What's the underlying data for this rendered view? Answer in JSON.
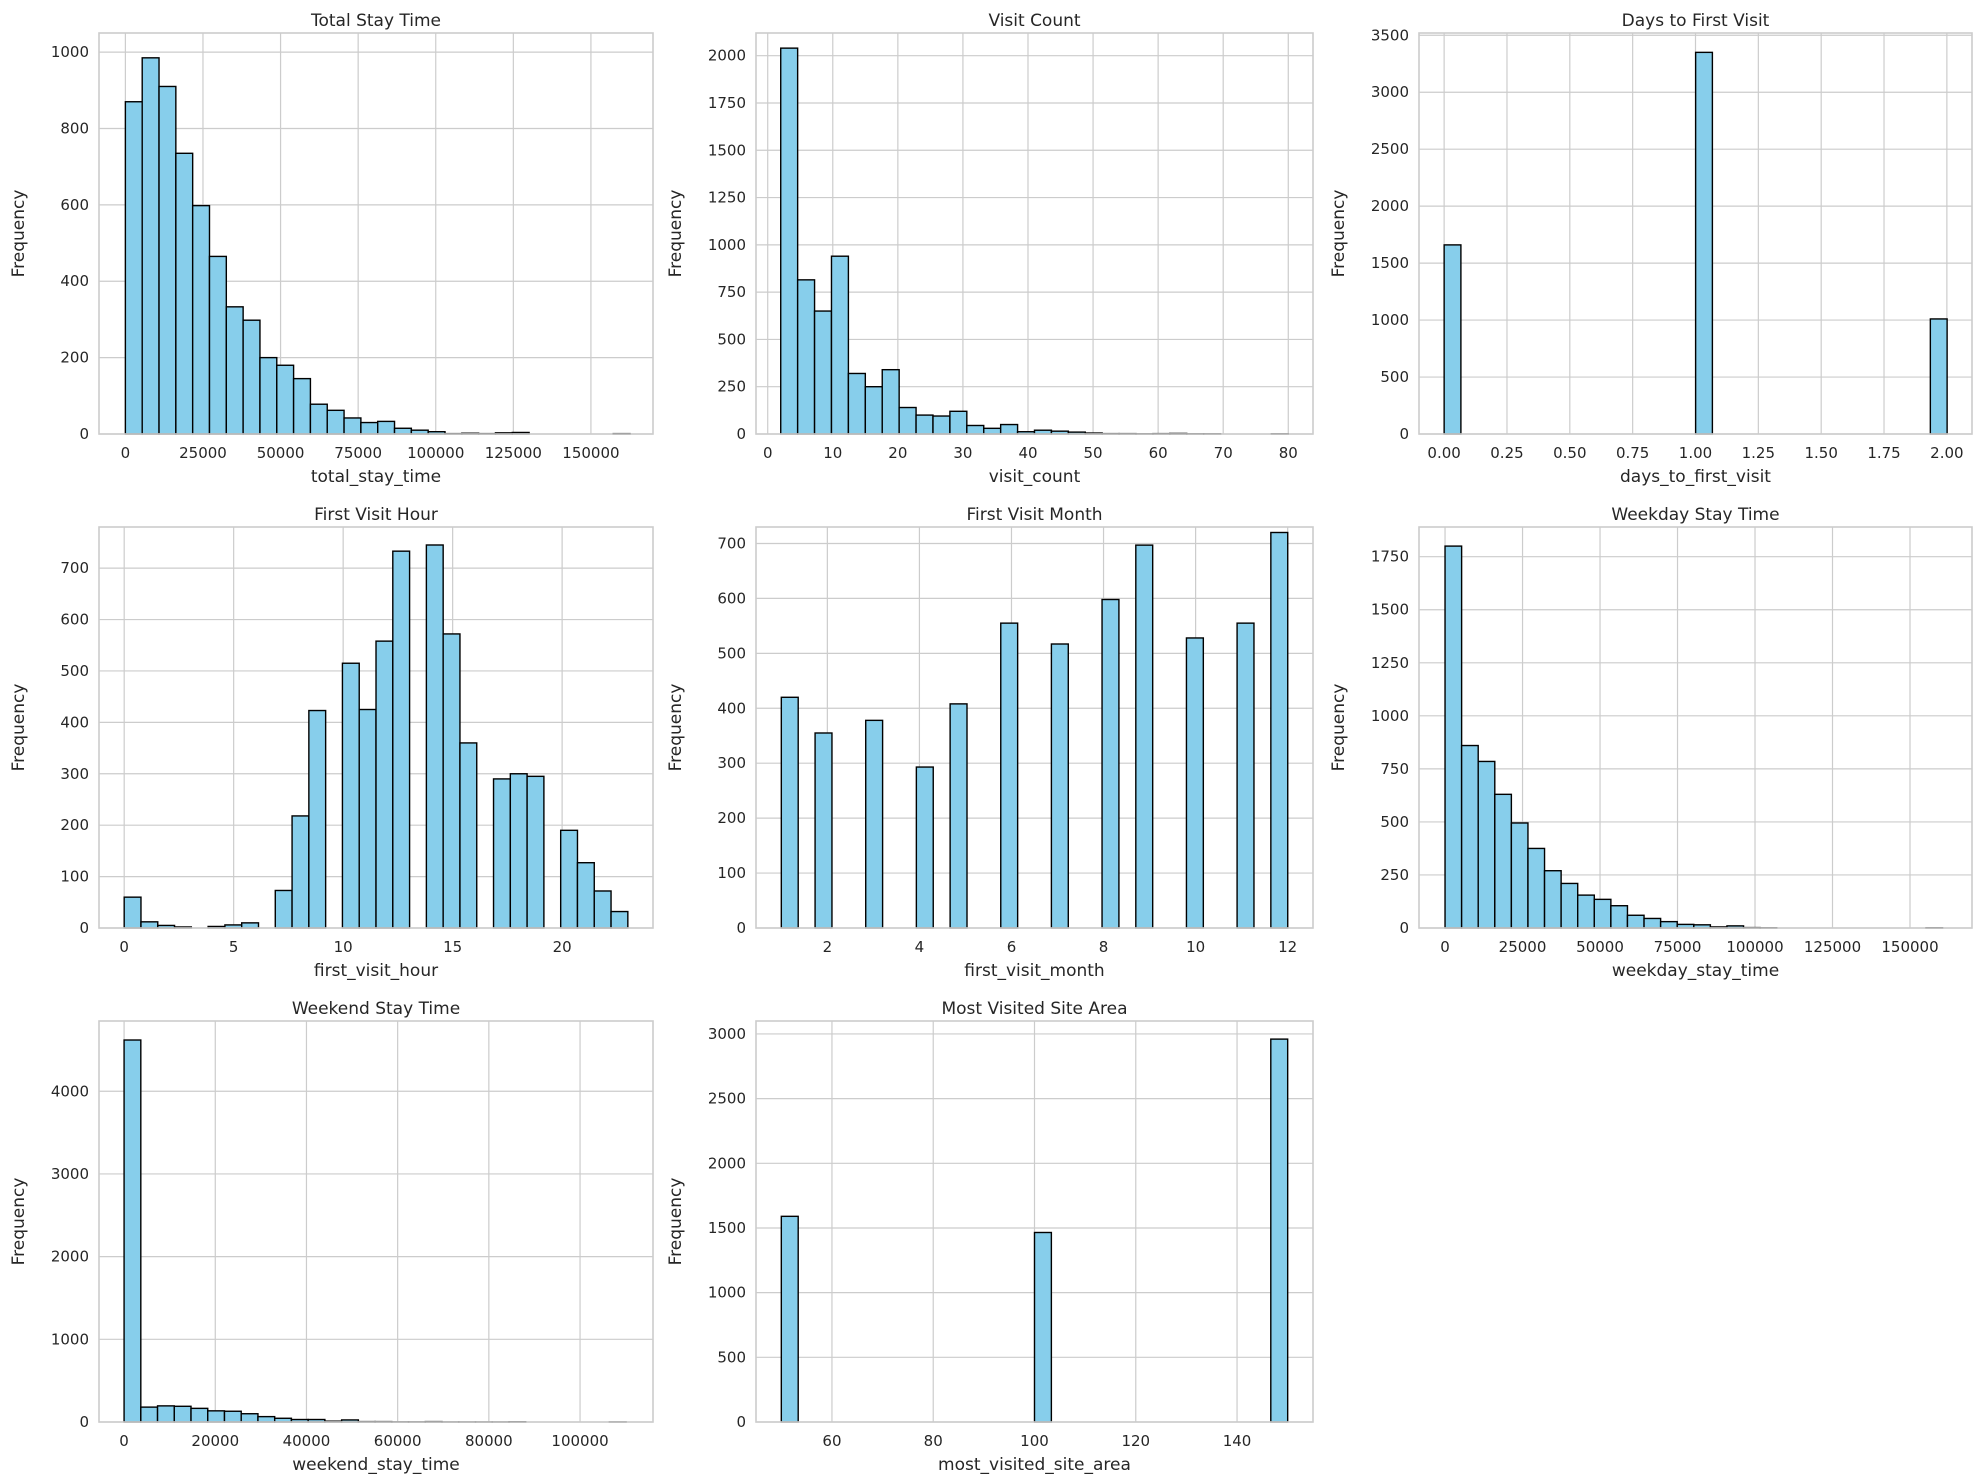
{
  "chart_data": [
    {
      "type": "bar",
      "title": "Total Stay Time",
      "xlabel": "total_stay_time",
      "ylabel": "Frequency",
      "xlim": [
        -8500,
        170000
      ],
      "ylim": [
        0,
        1050
      ],
      "xticks": [
        0,
        25000,
        50000,
        75000,
        100000,
        125000,
        150000
      ],
      "xtick_labels": [
        "0",
        "25000",
        "50000",
        "75000",
        "100000",
        "125000",
        "150000"
      ],
      "yticks": [
        0,
        200,
        400,
        600,
        800,
        1000
      ],
      "ytick_labels": [
        "0",
        "200",
        "400",
        "600",
        "800",
        "1000"
      ],
      "grid": true,
      "bins": {
        "start": 0,
        "width": 5420
      },
      "values": [
        870,
        985,
        910,
        735,
        598,
        465,
        333,
        298,
        200,
        180,
        145,
        78,
        62,
        42,
        30,
        33,
        15,
        10,
        6,
        1,
        2,
        1,
        3,
        4,
        0,
        0,
        0,
        0,
        0,
        1
      ]
    },
    {
      "type": "bar",
      "title": "Visit Count",
      "xlabel": "visit_count",
      "ylabel": "Frequency",
      "xlim": [
        -1.8,
        83.8
      ],
      "ylim": [
        0,
        2120
      ],
      "xticks": [
        0,
        10,
        20,
        30,
        40,
        50,
        60,
        70,
        80
      ],
      "xtick_labels": [
        "0",
        "10",
        "20",
        "30",
        "40",
        "50",
        "60",
        "70",
        "80"
      ],
      "yticks": [
        0,
        250,
        500,
        750,
        1000,
        1250,
        1500,
        1750,
        2000
      ],
      "ytick_labels": [
        "0",
        "250",
        "500",
        "750",
        "1000",
        "1250",
        "1500",
        "1750",
        "2000"
      ],
      "grid": true,
      "bins": {
        "start": 2,
        "width": 2.6
      },
      "values": [
        2040,
        815,
        650,
        940,
        320,
        250,
        340,
        140,
        100,
        95,
        120,
        45,
        30,
        50,
        12,
        20,
        15,
        10,
        5,
        2,
        2,
        1,
        2,
        3,
        1,
        1,
        0,
        0,
        0,
        1
      ]
    },
    {
      "type": "bar",
      "title": "Days to First Visit",
      "xlabel": "days_to_first_visit",
      "ylabel": "Frequency",
      "xlim": [
        -0.1,
        2.1
      ],
      "ylim": [
        0,
        3520
      ],
      "xticks": [
        0,
        0.25,
        0.5,
        0.75,
        1.0,
        1.25,
        1.5,
        1.75,
        2.0
      ],
      "xtick_labels": [
        "0.00",
        "0.25",
        "0.50",
        "0.75",
        "1.00",
        "1.25",
        "1.50",
        "1.75",
        "2.00"
      ],
      "yticks": [
        0,
        500,
        1000,
        1500,
        2000,
        2500,
        3000,
        3500
      ],
      "ytick_labels": [
        "0",
        "500",
        "1000",
        "1500",
        "2000",
        "2500",
        "3000",
        "3500"
      ],
      "grid": true,
      "bins": {
        "start": 0,
        "width": 0.0667
      },
      "values": [
        1660,
        0,
        0,
        0,
        0,
        0,
        0,
        0,
        0,
        0,
        0,
        0,
        0,
        0,
        0,
        3350,
        0,
        0,
        0,
        0,
        0,
        0,
        0,
        0,
        0,
        0,
        0,
        0,
        0,
        1010
      ]
    },
    {
      "type": "bar",
      "title": "First Visit Hour",
      "xlabel": "first_visit_hour",
      "ylabel": "Frequency",
      "xlim": [
        -1.15,
        24.15
      ],
      "ylim": [
        0,
        780
      ],
      "xticks": [
        0,
        5,
        10,
        15,
        20
      ],
      "xtick_labels": [
        "0",
        "5",
        "10",
        "15",
        "20"
      ],
      "yticks": [
        0,
        100,
        200,
        300,
        400,
        500,
        600,
        700
      ],
      "ytick_labels": [
        "0",
        "100",
        "200",
        "300",
        "400",
        "500",
        "600",
        "700"
      ],
      "grid": true,
      "bins": {
        "start": 0,
        "width": 0.7667
      },
      "values": [
        60,
        12,
        5,
        2,
        0,
        3,
        6,
        10,
        0,
        73,
        218,
        423,
        0,
        515,
        425,
        558,
        733,
        0,
        745,
        572,
        360,
        0,
        290,
        300,
        295,
        0,
        190,
        127,
        72,
        32
      ]
    },
    {
      "type": "bar",
      "title": "First Visit Month",
      "xlabel": "first_visit_month",
      "ylabel": "Frequency",
      "xlim": [
        0.45,
        12.55
      ],
      "ylim": [
        0,
        730
      ],
      "xticks": [
        2,
        4,
        6,
        8,
        10,
        12
      ],
      "xtick_labels": [
        "2",
        "4",
        "6",
        "8",
        "10",
        "12"
      ],
      "yticks": [
        0,
        100,
        200,
        300,
        400,
        500,
        600,
        700
      ],
      "ytick_labels": [
        "0",
        "100",
        "200",
        "300",
        "400",
        "500",
        "600",
        "700"
      ],
      "grid": true,
      "bins": {
        "start": 1,
        "width": 0.3667
      },
      "values": [
        420,
        0,
        355,
        0,
        0,
        378,
        0,
        0,
        293,
        0,
        408,
        0,
        0,
        555,
        0,
        0,
        517,
        0,
        0,
        598,
        0,
        697,
        0,
        0,
        528,
        0,
        0,
        555,
        0,
        720
      ]
    },
    {
      "type": "bar",
      "title": "Weekday Stay Time",
      "xlabel": "weekday_stay_time",
      "ylabel": "Frequency",
      "xlim": [
        -8400,
        170000
      ],
      "ylim": [
        0,
        1890
      ],
      "xticks": [
        0,
        25000,
        50000,
        75000,
        100000,
        125000,
        150000
      ],
      "xtick_labels": [
        "0",
        "25000",
        "50000",
        "75000",
        "100000",
        "125000",
        "150000"
      ],
      "yticks": [
        0,
        250,
        500,
        750,
        1000,
        1250,
        1500,
        1750
      ],
      "ytick_labels": [
        "0",
        "250",
        "500",
        "750",
        "1000",
        "1250",
        "1500",
        "1750"
      ],
      "grid": true,
      "bins": {
        "start": 0,
        "width": 5350
      },
      "values": [
        1800,
        860,
        785,
        630,
        495,
        375,
        270,
        210,
        155,
        135,
        105,
        60,
        45,
        30,
        17,
        15,
        5,
        10,
        2,
        1,
        0,
        0,
        0,
        0,
        0,
        0,
        0,
        0,
        0,
        1
      ]
    },
    {
      "type": "bar",
      "title": "Weekend Stay Time",
      "xlabel": "weekend_stay_time",
      "ylabel": "Frequency",
      "xlim": [
        -5500,
        116000
      ],
      "ylim": [
        0,
        4850
      ],
      "xticks": [
        0,
        20000,
        40000,
        60000,
        80000,
        100000
      ],
      "xtick_labels": [
        "0",
        "20000",
        "40000",
        "60000",
        "80000",
        "100000"
      ],
      "yticks": [
        0,
        1000,
        2000,
        3000,
        4000
      ],
      "ytick_labels": [
        "0",
        "1000",
        "2000",
        "3000",
        "4000"
      ],
      "grid": true,
      "bins": {
        "start": 0,
        "width": 3670
      },
      "values": [
        4620,
        180,
        195,
        190,
        165,
        135,
        130,
        100,
        65,
        45,
        30,
        30,
        10,
        25,
        5,
        5,
        2,
        2,
        5,
        1,
        1,
        1,
        1,
        3,
        0,
        0,
        0,
        0,
        0,
        1
      ]
    },
    {
      "type": "bar",
      "title": "Most Visited Site Area",
      "xlabel": "most_visited_site_area",
      "ylabel": "Frequency",
      "xlim": [
        45,
        155
      ],
      "ylim": [
        0,
        3100
      ],
      "xticks": [
        60,
        80,
        100,
        120,
        140
      ],
      "xtick_labels": [
        "60",
        "80",
        "100",
        "120",
        "140"
      ],
      "yticks": [
        0,
        500,
        1000,
        1500,
        2000,
        2500,
        3000
      ],
      "ytick_labels": [
        "0",
        "500",
        "1000",
        "1500",
        "2000",
        "2500",
        "3000"
      ],
      "grid": true,
      "bins": {
        "start": 50,
        "width": 3.3333
      },
      "values": [
        1590,
        0,
        0,
        0,
        0,
        0,
        0,
        0,
        0,
        0,
        0,
        0,
        0,
        0,
        0,
        1465,
        0,
        0,
        0,
        0,
        0,
        0,
        0,
        0,
        0,
        0,
        0,
        0,
        0,
        2960
      ]
    }
  ],
  "colors": {
    "bar_fill": "#87ceeb",
    "bar_edge": "#000000",
    "grid": "#cccccc",
    "spine": "#cccccc",
    "text": "#262626"
  }
}
